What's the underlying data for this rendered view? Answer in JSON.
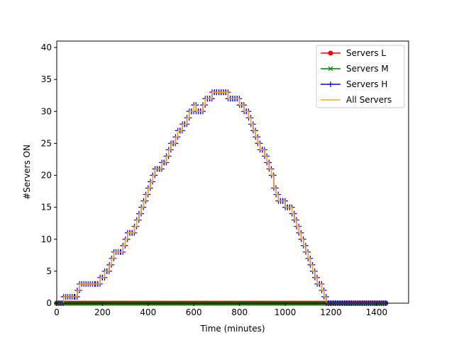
{
  "chart_data": {
    "type": "line",
    "xlabel": "Time (minutes)",
    "ylabel": "#Servers ON",
    "xlim": [
      0,
      1540
    ],
    "ylim": [
      0,
      41
    ],
    "xticks": [
      0,
      200,
      400,
      600,
      800,
      1000,
      1200,
      1400
    ],
    "yticks": [
      0,
      5,
      10,
      15,
      20,
      25,
      30,
      35,
      40
    ],
    "grid": false,
    "legend_position": "top-right",
    "series": [
      {
        "name": "Servers L",
        "color": "#ff0000",
        "marker": "circle",
        "x": [
          0,
          1440
        ],
        "y": [
          0,
          0
        ]
      },
      {
        "name": "Servers M",
        "color": "#008000",
        "marker": "x",
        "x": [
          0,
          1440
        ],
        "y": [
          0,
          0
        ]
      },
      {
        "name": "Servers H",
        "color": "#0000ff",
        "marker": "plus",
        "x": [
          0,
          30,
          80,
          90,
          100,
          170,
          180,
          190,
          200,
          210,
          220,
          230,
          240,
          250,
          280,
          290,
          300,
          310,
          320,
          330,
          340,
          350,
          360,
          370,
          380,
          390,
          400,
          410,
          420,
          430,
          440,
          450,
          460,
          470,
          480,
          490,
          500,
          510,
          520,
          530,
          540,
          550,
          560,
          570,
          580,
          590,
          600,
          610,
          620,
          630,
          640,
          650,
          660,
          670,
          680,
          690,
          700,
          710,
          720,
          730,
          740,
          750,
          760,
          770,
          780,
          790,
          800,
          810,
          820,
          830,
          840,
          850,
          860,
          870,
          880,
          890,
          900,
          910,
          920,
          930,
          940,
          950,
          960,
          970,
          980,
          990,
          1000,
          1010,
          1020,
          1030,
          1040,
          1050,
          1060,
          1070,
          1080,
          1090,
          1100,
          1110,
          1120,
          1130,
          1140,
          1150,
          1160,
          1170,
          1180,
          1190,
          1200,
          1210,
          1220,
          1230,
          1240,
          1250,
          1260,
          1270,
          1280,
          1290,
          1440
        ],
        "y": [
          0,
          1,
          1,
          2,
          3,
          3,
          3,
          4,
          4,
          5,
          5,
          6,
          7,
          8,
          8,
          9,
          10,
          11,
          11,
          11,
          12,
          13,
          14,
          15,
          16,
          17,
          18,
          19,
          20,
          21,
          21,
          21,
          22,
          22,
          23,
          24,
          25,
          25,
          26,
          27,
          27,
          28,
          28,
          29,
          30,
          30,
          31,
          30,
          30,
          30,
          31,
          32,
          32,
          32,
          33,
          33,
          33,
          33,
          33,
          33,
          33,
          32,
          32,
          32,
          32,
          32,
          31,
          31,
          30,
          30,
          29,
          28,
          27,
          26,
          25,
          24,
          24,
          23,
          22,
          21,
          20,
          18,
          17,
          16,
          16,
          16,
          15,
          15,
          15,
          14,
          13,
          12,
          11,
          10,
          9,
          8,
          7,
          6,
          5,
          4,
          3,
          3,
          2,
          1,
          0,
          0,
          0,
          0,
          0,
          0,
          0,
          0,
          0,
          0,
          0,
          0,
          0
        ]
      },
      {
        "name": "All Servers",
        "color": "#ffa500",
        "marker": "none",
        "x": [
          0,
          30,
          80,
          90,
          100,
          170,
          180,
          190,
          200,
          210,
          220,
          230,
          240,
          250,
          280,
          290,
          300,
          310,
          320,
          330,
          340,
          350,
          360,
          370,
          380,
          390,
          400,
          410,
          420,
          430,
          440,
          450,
          460,
          470,
          480,
          490,
          500,
          510,
          520,
          530,
          540,
          550,
          560,
          570,
          580,
          590,
          600,
          610,
          620,
          630,
          640,
          650,
          660,
          670,
          680,
          690,
          700,
          710,
          720,
          730,
          740,
          750,
          760,
          770,
          780,
          790,
          800,
          810,
          820,
          830,
          840,
          850,
          860,
          870,
          880,
          890,
          900,
          910,
          920,
          930,
          940,
          950,
          960,
          970,
          980,
          990,
          1000,
          1010,
          1020,
          1030,
          1040,
          1050,
          1060,
          1070,
          1080,
          1090,
          1100,
          1110,
          1120,
          1130,
          1140,
          1150,
          1160,
          1170,
          1180,
          1190,
          1200,
          1210,
          1220,
          1230,
          1240,
          1250,
          1260,
          1270,
          1280,
          1290,
          1440
        ],
        "y": [
          0,
          1,
          1,
          2,
          3,
          3,
          3,
          4,
          4,
          5,
          5,
          6,
          7,
          8,
          8,
          9,
          10,
          11,
          11,
          11,
          12,
          13,
          14,
          15,
          16,
          17,
          18,
          19,
          20,
          21,
          21,
          21,
          22,
          22,
          23,
          24,
          25,
          25,
          26,
          27,
          27,
          28,
          28,
          29,
          30,
          30,
          31,
          30,
          30,
          30,
          31,
          32,
          32,
          32,
          33,
          33,
          33,
          33,
          33,
          33,
          33,
          32,
          32,
          32,
          32,
          32,
          31,
          31,
          30,
          30,
          29,
          28,
          27,
          26,
          25,
          24,
          24,
          23,
          22,
          21,
          20,
          18,
          17,
          16,
          16,
          16,
          15,
          15,
          15,
          14,
          13,
          12,
          11,
          10,
          9,
          8,
          7,
          6,
          5,
          4,
          3,
          3,
          2,
          1,
          0,
          0,
          0,
          0,
          0,
          0,
          0,
          0,
          0,
          0,
          0,
          0,
          0
        ]
      }
    ]
  }
}
